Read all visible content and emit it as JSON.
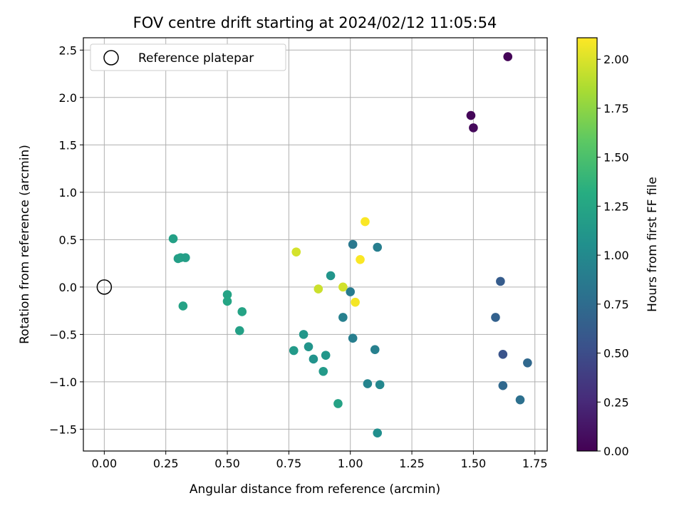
{
  "chart_data": {
    "type": "scatter",
    "title": "FOV centre drift starting at 2024/02/12 11:05:54",
    "xlabel": "Angular distance from reference (arcmin)",
    "ylabel": "Rotation from reference (arcmin)",
    "xlim": [
      -0.085,
      1.8
    ],
    "ylim": [
      -1.73,
      2.63
    ],
    "x_ticks": [
      0.0,
      0.25,
      0.5,
      0.75,
      1.0,
      1.25,
      1.5,
      1.75
    ],
    "x_tick_labels": [
      "0.00",
      "0.25",
      "0.50",
      "0.75",
      "1.00",
      "1.25",
      "1.50",
      "1.75"
    ],
    "y_ticks": [
      -1.5,
      -1.0,
      -0.5,
      0.0,
      0.5,
      1.0,
      1.5,
      2.0,
      2.5
    ],
    "y_tick_labels": [
      "−1.5",
      "−1.0",
      "−0.5",
      "0.0",
      "0.5",
      "1.0",
      "1.5",
      "2.0",
      "2.5"
    ],
    "grid": true,
    "legend": {
      "position": "top-left",
      "entries": [
        {
          "label": "Reference platepar",
          "marker": "open-circle"
        }
      ]
    },
    "reference_point": {
      "x": 0.0,
      "y": 0.0
    },
    "colorbar": {
      "label": "Hours from first FF file",
      "colormap": "viridis",
      "range": [
        0.0,
        2.11
      ],
      "ticks": [
        0.0,
        0.25,
        0.5,
        0.75,
        1.0,
        1.25,
        1.5,
        1.75,
        2.0
      ],
      "tick_labels": [
        "0.00",
        "0.25",
        "0.50",
        "0.75",
        "1.00",
        "1.25",
        "1.50",
        "1.75",
        "2.00"
      ]
    },
    "points": [
      {
        "x": 1.64,
        "y": 2.43,
        "c": 0.02
      },
      {
        "x": 1.49,
        "y": 1.81,
        "c": 0.03
      },
      {
        "x": 1.5,
        "y": 1.68,
        "c": 0.05
      },
      {
        "x": 1.61,
        "y": 0.06,
        "c": 0.62
      },
      {
        "x": 1.59,
        "y": -0.32,
        "c": 0.66
      },
      {
        "x": 1.62,
        "y": -0.71,
        "c": 0.55
      },
      {
        "x": 1.72,
        "y": -0.8,
        "c": 0.72
      },
      {
        "x": 1.62,
        "y": -1.04,
        "c": 0.72
      },
      {
        "x": 1.69,
        "y": -1.19,
        "c": 0.78
      },
      {
        "x": 1.11,
        "y": 0.42,
        "c": 0.9
      },
      {
        "x": 1.01,
        "y": 0.45,
        "c": 0.85
      },
      {
        "x": 1.0,
        "y": -0.05,
        "c": 0.88
      },
      {
        "x": 0.97,
        "y": -0.32,
        "c": 0.92
      },
      {
        "x": 1.01,
        "y": -0.54,
        "c": 0.9
      },
      {
        "x": 1.1,
        "y": -0.66,
        "c": 0.92
      },
      {
        "x": 1.07,
        "y": -1.02,
        "c": 0.95
      },
      {
        "x": 1.12,
        "y": -1.03,
        "c": 0.98
      },
      {
        "x": 1.11,
        "y": -1.54,
        "c": 1.05
      },
      {
        "x": 0.92,
        "y": 0.12,
        "c": 1.1
      },
      {
        "x": 0.81,
        "y": -0.5,
        "c": 1.12
      },
      {
        "x": 0.77,
        "y": -0.67,
        "c": 1.15
      },
      {
        "x": 0.83,
        "y": -0.63,
        "c": 1.1
      },
      {
        "x": 0.85,
        "y": -0.76,
        "c": 1.08
      },
      {
        "x": 0.9,
        "y": -0.72,
        "c": 1.12
      },
      {
        "x": 0.89,
        "y": -0.89,
        "c": 1.15
      },
      {
        "x": 0.95,
        "y": -1.23,
        "c": 1.22
      },
      {
        "x": 0.28,
        "y": 0.51,
        "c": 1.2
      },
      {
        "x": 0.3,
        "y": 0.3,
        "c": 1.18
      },
      {
        "x": 0.31,
        "y": 0.31,
        "c": 1.2
      },
      {
        "x": 0.33,
        "y": 0.31,
        "c": 1.18
      },
      {
        "x": 0.32,
        "y": -0.2,
        "c": 1.22
      },
      {
        "x": 0.5,
        "y": -0.08,
        "c": 1.23
      },
      {
        "x": 0.5,
        "y": -0.15,
        "c": 1.25
      },
      {
        "x": 0.56,
        "y": -0.26,
        "c": 1.23
      },
      {
        "x": 0.55,
        "y": -0.46,
        "c": 1.2
      },
      {
        "x": 0.78,
        "y": 0.37,
        "c": 1.98
      },
      {
        "x": 0.87,
        "y": -0.02,
        "c": 1.95
      },
      {
        "x": 0.97,
        "y": 0.0,
        "c": 1.97
      },
      {
        "x": 1.02,
        "y": -0.16,
        "c": 2.08
      },
      {
        "x": 1.04,
        "y": 0.29,
        "c": 2.1
      },
      {
        "x": 1.06,
        "y": 0.69,
        "c": 2.1
      }
    ]
  }
}
